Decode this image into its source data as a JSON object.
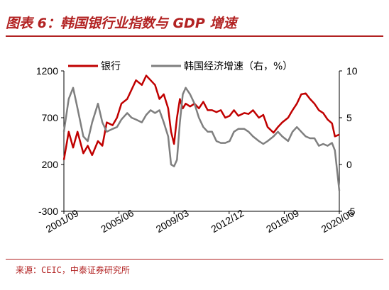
{
  "header": {
    "title": "图表 6：韩国银行业指数与 GDP 增速"
  },
  "footer": {
    "source": "来源：CEIC，中泰证券研究所"
  },
  "chart_data": {
    "type": "line",
    "title": "图表 6：韩国银行业指数与 GDP 增速",
    "legend_position": "top",
    "grid": false,
    "x_tick_labels": [
      "2001/09",
      "2005/06",
      "2009/03",
      "2012/12",
      "2016/09",
      "2020/06"
    ],
    "x_range": [
      2001.67,
      2020.5
    ],
    "left_axis": {
      "ylim": [
        -300,
        1200
      ],
      "ticks": [
        -300,
        200,
        700,
        1200
      ]
    },
    "right_axis": {
      "ylim": [
        -5,
        10
      ],
      "ticks": [
        -5,
        0,
        5,
        10
      ]
    },
    "series": [
      {
        "name": "银行",
        "axis": "left",
        "color": "#c00000",
        "x": [
          2001.67,
          2002.0,
          2002.3,
          2002.6,
          2003.0,
          2003.3,
          2003.6,
          2004.0,
          2004.3,
          2004.6,
          2005.0,
          2005.3,
          2005.6,
          2006.0,
          2006.3,
          2006.6,
          2007.0,
          2007.3,
          2007.6,
          2007.9,
          2008.2,
          2008.5,
          2008.8,
          2009.0,
          2009.2,
          2009.4,
          2009.6,
          2009.8,
          2010.0,
          2010.3,
          2010.6,
          2010.9,
          2011.2,
          2011.5,
          2011.8,
          2012.1,
          2012.4,
          2012.7,
          2013.0,
          2013.3,
          2013.6,
          2014.0,
          2014.3,
          2014.6,
          2015.0,
          2015.3,
          2015.6,
          2016.0,
          2016.3,
          2016.6,
          2017.0,
          2017.3,
          2017.6,
          2017.9,
          2018.2,
          2018.5,
          2018.8,
          2019.1,
          2019.4,
          2019.7,
          2020.0,
          2020.2,
          2020.5
        ],
        "values": [
          250,
          550,
          380,
          550,
          320,
          400,
          300,
          450,
          400,
          650,
          620,
          700,
          850,
          900,
          1000,
          1100,
          1050,
          1150,
          1100,
          1050,
          900,
          950,
          800,
          550,
          420,
          700,
          900,
          800,
          850,
          820,
          850,
          800,
          870,
          780,
          780,
          760,
          780,
          700,
          720,
          780,
          720,
          750,
          740,
          780,
          700,
          730,
          600,
          540,
          600,
          650,
          700,
          780,
          850,
          950,
          960,
          900,
          850,
          780,
          750,
          680,
          640,
          500,
          520
        ]
      },
      {
        "name": "韩国经济增速（右，%）",
        "axis": "right",
        "color": "#7f7f7f",
        "x": [
          2001.67,
          2002.0,
          2002.3,
          2002.6,
          2003.0,
          2003.3,
          2003.6,
          2004.0,
          2004.3,
          2004.6,
          2005.0,
          2005.3,
          2005.6,
          2006.0,
          2006.3,
          2006.6,
          2007.0,
          2007.3,
          2007.6,
          2007.9,
          2008.2,
          2008.5,
          2008.8,
          2009.0,
          2009.2,
          2009.4,
          2009.6,
          2009.8,
          2010.0,
          2010.3,
          2010.6,
          2010.9,
          2011.2,
          2011.5,
          2011.8,
          2012.1,
          2012.4,
          2012.7,
          2013.0,
          2013.3,
          2013.6,
          2014.0,
          2014.3,
          2014.6,
          2015.0,
          2015.3,
          2015.6,
          2016.0,
          2016.3,
          2016.6,
          2017.0,
          2017.3,
          2017.6,
          2017.9,
          2018.2,
          2018.5,
          2018.8,
          2019.1,
          2019.4,
          2019.7,
          2020.0,
          2020.2,
          2020.5
        ],
        "values": [
          3.5,
          7.0,
          8.2,
          6.0,
          3.0,
          2.5,
          4.5,
          6.5,
          4.5,
          3.5,
          3.8,
          4.0,
          4.8,
          5.5,
          5.0,
          4.8,
          4.5,
          5.3,
          5.8,
          5.5,
          5.8,
          4.5,
          3.0,
          0.0,
          -0.2,
          0.5,
          4.5,
          7.5,
          8.2,
          7.5,
          6.5,
          5.0,
          4.0,
          3.5,
          3.5,
          2.5,
          2.3,
          2.3,
          2.5,
          3.5,
          3.8,
          3.8,
          3.5,
          3.0,
          2.5,
          2.2,
          2.5,
          3.0,
          3.5,
          3.0,
          2.5,
          3.5,
          4.0,
          3.5,
          3.0,
          2.8,
          2.8,
          2.0,
          2.2,
          2.0,
          2.3,
          1.5,
          -2.8
        ]
      }
    ]
  }
}
